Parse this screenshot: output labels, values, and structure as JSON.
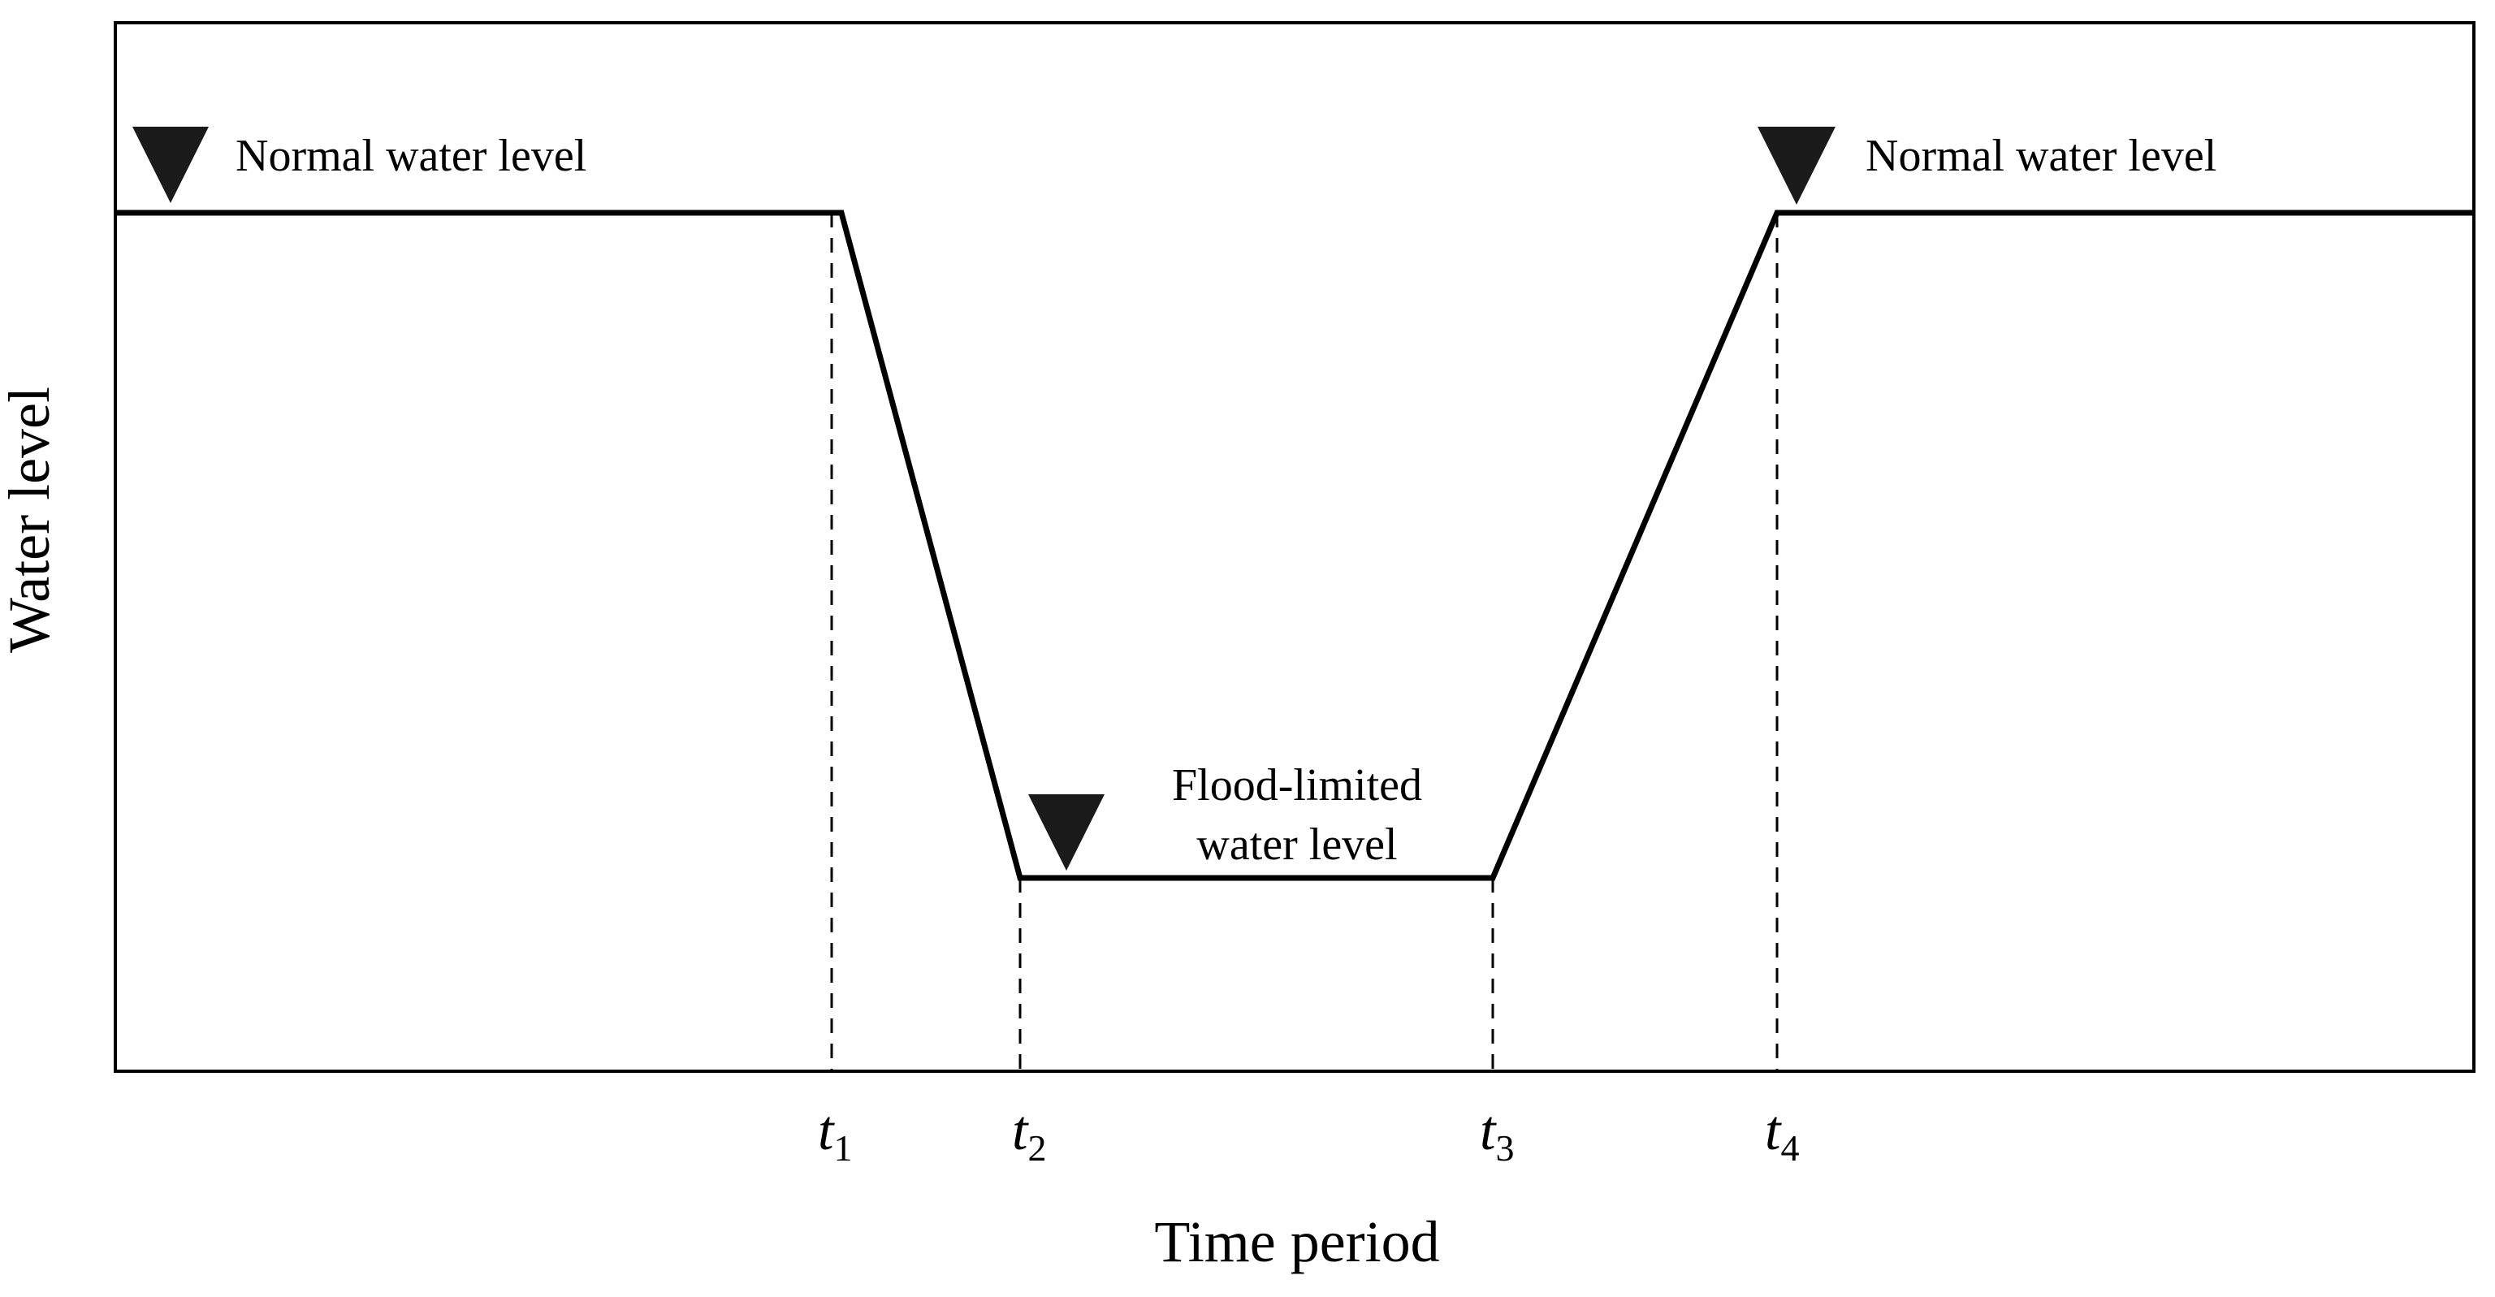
{
  "chart_data": {
    "type": "line",
    "xlabel": "Time period",
    "ylabel": "Water level",
    "ticks": [
      {
        "symbol": "t",
        "subscript": "1"
      },
      {
        "symbol": "t",
        "subscript": "2"
      },
      {
        "symbol": "t",
        "subscript": "3"
      },
      {
        "symbol": "t",
        "subscript": "4"
      }
    ],
    "levels": {
      "normal_left": "Normal water level",
      "normal_right": "Normal water level",
      "flood_limited_line1": "Flood-limited",
      "flood_limited_line2": "water level"
    }
  }
}
